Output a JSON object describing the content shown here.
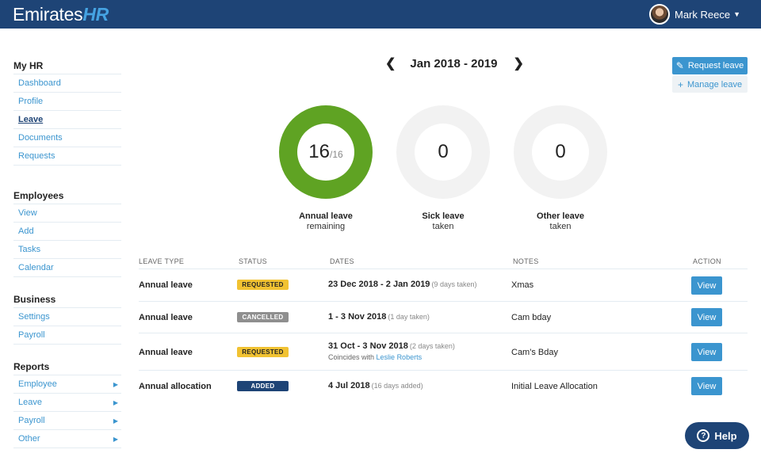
{
  "header": {
    "logo_main": "Emirates",
    "logo_accent": "HR",
    "user_name": "Mark Reece"
  },
  "sidebar": {
    "sections": [
      {
        "title": "My HR",
        "items": [
          "Dashboard",
          "Profile",
          "Leave",
          "Documents",
          "Requests"
        ]
      },
      {
        "title": "Employees",
        "items": [
          "View",
          "Add",
          "Tasks",
          "Calendar"
        ]
      },
      {
        "title": "Business",
        "items": [
          "Settings",
          "Payroll"
        ]
      },
      {
        "title": "Reports",
        "items": [
          "Employee",
          "Leave",
          "Payroll",
          "Other"
        ]
      }
    ],
    "active": "Leave"
  },
  "period": {
    "label": "Jan 2018 - 2019"
  },
  "actions": {
    "request_leave": "Request leave",
    "manage_leave": "Manage leave"
  },
  "summary": [
    {
      "value": "16",
      "total": "/16",
      "title": "Annual leave",
      "subtitle": "remaining",
      "fraction": 1.0,
      "color": "#5fa323"
    },
    {
      "value": "0",
      "total": "",
      "title": "Sick leave",
      "subtitle": "taken",
      "fraction": 0,
      "color": "#f2f2f2"
    },
    {
      "value": "0",
      "total": "",
      "title": "Other leave",
      "subtitle": "taken",
      "fraction": 0,
      "color": "#f2f2f2"
    }
  ],
  "table": {
    "headers": {
      "type": "LEAVE TYPE",
      "status": "STATUS",
      "dates": "DATES",
      "notes": "NOTES",
      "action": "ACTION"
    },
    "rows": [
      {
        "type": "Annual leave",
        "status": "REQUESTED",
        "dates": "23 Dec 2018 - 2 Jan 2019",
        "days": "(9 days taken)",
        "sub_prefix": "",
        "sub_link": "",
        "notes": "Xmas",
        "action": "View"
      },
      {
        "type": "Annual leave",
        "status": "CANCELLED",
        "dates": "1 - 3 Nov 2018",
        "days": "(1 day taken)",
        "sub_prefix": "",
        "sub_link": "",
        "notes": "Cam bday",
        "action": "View"
      },
      {
        "type": "Annual leave",
        "status": "REQUESTED",
        "dates": "31 Oct - 3 Nov 2018",
        "days": "(2 days taken)",
        "sub_prefix": "Coincides with",
        "sub_link": "Leslie Roberts",
        "notes": "Cam's Bday",
        "action": "View"
      },
      {
        "type": "Annual allocation",
        "status": "ADDED",
        "dates": "4 Jul 2018",
        "days": "(16 days added)",
        "sub_prefix": "",
        "sub_link": "",
        "notes": "Initial Leave Allocation",
        "action": "View"
      }
    ]
  },
  "help": {
    "label": "Help"
  },
  "colors": {
    "navy": "#1e4476",
    "blue": "#3b95cf",
    "green": "#5fa323",
    "yellow": "#f1c232",
    "grey": "#8f8f8f"
  }
}
